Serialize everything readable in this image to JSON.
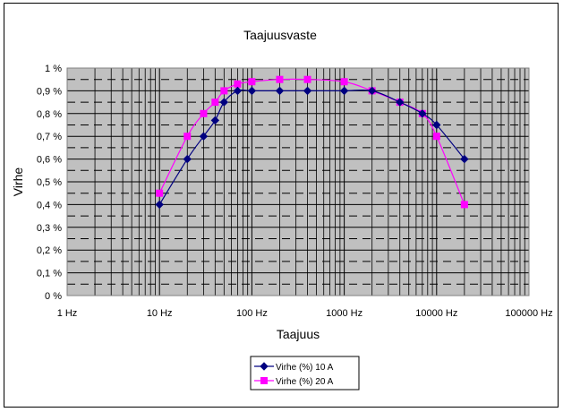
{
  "chart_data": {
    "type": "line",
    "title": "Taajuusvaste",
    "xlabel": "Taajuus",
    "ylabel": "Virhe",
    "x_scale": "log",
    "xlim": [
      1,
      100000
    ],
    "ylim": [
      0,
      1
    ],
    "x_ticks": [
      {
        "value": 1,
        "label": "1 Hz"
      },
      {
        "value": 10,
        "label": "10 Hz"
      },
      {
        "value": 100,
        "label": "100 Hz"
      },
      {
        "value": 1000,
        "label": "1000 Hz"
      },
      {
        "value": 10000,
        "label": "10000 Hz"
      },
      {
        "value": 100000,
        "label": "100000 Hz"
      }
    ],
    "y_ticks": [
      {
        "value": 0,
        "label": "0 %"
      },
      {
        "value": 0.1,
        "label": "0,1 %"
      },
      {
        "value": 0.2,
        "label": "0,2 %"
      },
      {
        "value": 0.3,
        "label": "0,3 %"
      },
      {
        "value": 0.4,
        "label": "0,4 %"
      },
      {
        "value": 0.5,
        "label": "0,5 %"
      },
      {
        "value": 0.6,
        "label": "0,6 %"
      },
      {
        "value": 0.7,
        "label": "0,7 %"
      },
      {
        "value": 0.8,
        "label": "0,8 %"
      },
      {
        "value": 0.9,
        "label": "0,9 %"
      },
      {
        "value": 1,
        "label": "1 %"
      }
    ],
    "grid": true,
    "plot_background": "#c0c0c0",
    "legend_position": "bottom",
    "series": [
      {
        "name": "Virhe (%) 10 A",
        "color": "#000080",
        "marker": "diamond",
        "points": [
          [
            10,
            0.4
          ],
          [
            20,
            0.6
          ],
          [
            30,
            0.7
          ],
          [
            40,
            0.77
          ],
          [
            50,
            0.85
          ],
          [
            70,
            0.9
          ],
          [
            100,
            0.9
          ],
          [
            200,
            0.9
          ],
          [
            400,
            0.9
          ],
          [
            1000,
            0.9
          ],
          [
            2000,
            0.9
          ],
          [
            4000,
            0.85
          ],
          [
            7000,
            0.8
          ],
          [
            10000,
            0.75
          ],
          [
            20000,
            0.6
          ]
        ]
      },
      {
        "name": "Virhe (%) 20 A",
        "color": "#ff00ff",
        "marker": "square",
        "points": [
          [
            10,
            0.45
          ],
          [
            20,
            0.7
          ],
          [
            30,
            0.8
          ],
          [
            40,
            0.85
          ],
          [
            50,
            0.9
          ],
          [
            70,
            0.93
          ],
          [
            100,
            0.94
          ],
          [
            200,
            0.95
          ],
          [
            400,
            0.95
          ],
          [
            1000,
            0.94
          ],
          [
            2000,
            0.9
          ],
          [
            4000,
            0.85
          ],
          [
            7000,
            0.8
          ],
          [
            10000,
            0.7
          ],
          [
            20000,
            0.4
          ]
        ]
      }
    ]
  }
}
